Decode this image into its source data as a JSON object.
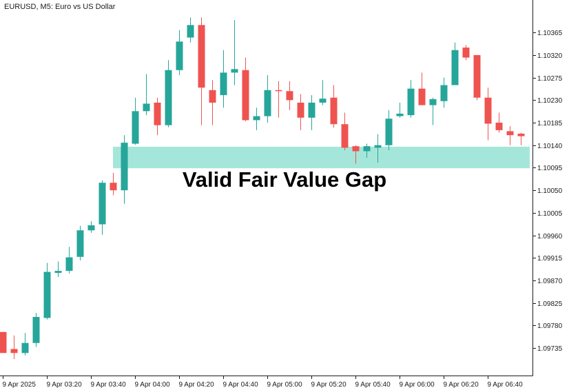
{
  "header": {
    "symbol_label": "EURUSD, M5:  Euro vs US Dollar"
  },
  "chart_data": {
    "type": "candlestick",
    "symbol": "EURUSD",
    "timeframe": "M5",
    "title": "EURUSD, M5:  Euro vs US Dollar",
    "ylim": [
      1.0968,
      1.1043
    ],
    "y_ticks": [
      "1.10365",
      "1.10320",
      "1.10275",
      "1.10230",
      "1.10185",
      "1.10140",
      "1.10095",
      "1.10050",
      "1.10005",
      "1.09960",
      "1.09915",
      "1.09870",
      "1.09825",
      "1.09780",
      "1.09735"
    ],
    "x_ticks": [
      {
        "label": "9 Apr 2025",
        "index": 0
      },
      {
        "label": "9 Apr 03:20",
        "index": 4
      },
      {
        "label": "9 Apr 03:40",
        "index": 8
      },
      {
        "label": "9 Apr 04:00",
        "index": 12
      },
      {
        "label": "9 Apr 04:20",
        "index": 16
      },
      {
        "label": "9 Apr 04:40",
        "index": 20
      },
      {
        "label": "9 Apr 05:00",
        "index": 24
      },
      {
        "label": "9 Apr 05:20",
        "index": 28
      },
      {
        "label": "9 Apr 05:40",
        "index": 32
      },
      {
        "label": "9 Apr 06:00",
        "index": 36
      },
      {
        "label": "9 Apr 06:20",
        "index": 40
      },
      {
        "label": "9 Apr 06:40",
        "index": 44
      }
    ],
    "colors": {
      "bull": "#26a69a",
      "bear": "#ef5350",
      "zone": "#7fdccb",
      "axis": "#1a1a1a"
    },
    "candles": [
      {
        "o": 1.09767,
        "h": 1.09767,
        "l": 1.09725,
        "c": 1.09725
      },
      {
        "o": 1.09733,
        "h": 1.0976,
        "l": 1.09713,
        "c": 1.09725
      },
      {
        "o": 1.09725,
        "h": 1.09765,
        "l": 1.0972,
        "c": 1.09745
      },
      {
        "o": 1.09745,
        "h": 1.09805,
        "l": 1.09737,
        "c": 1.09797
      },
      {
        "o": 1.09795,
        "h": 1.09905,
        "l": 1.09792,
        "c": 1.09887
      },
      {
        "o": 1.09885,
        "h": 1.09908,
        "l": 1.09877,
        "c": 1.09889
      },
      {
        "o": 1.09889,
        "h": 1.09937,
        "l": 1.09884,
        "c": 1.09916
      },
      {
        "o": 1.09917,
        "h": 1.09979,
        "l": 1.0991,
        "c": 1.0997
      },
      {
        "o": 1.0997,
        "h": 1.09988,
        "l": 1.09965,
        "c": 1.0998
      },
      {
        "o": 1.09982,
        "h": 1.1007,
        "l": 1.09961,
        "c": 1.10065
      },
      {
        "o": 1.10065,
        "h": 1.10085,
        "l": 1.1004,
        "c": 1.1005
      },
      {
        "o": 1.1005,
        "h": 1.1016,
        "l": 1.10023,
        "c": 1.10145
      },
      {
        "o": 1.10143,
        "h": 1.10235,
        "l": 1.10141,
        "c": 1.10208
      },
      {
        "o": 1.10208,
        "h": 1.10282,
        "l": 1.102,
        "c": 1.10223
      },
      {
        "o": 1.10225,
        "h": 1.10235,
        "l": 1.1016,
        "c": 1.1018
      },
      {
        "o": 1.1018,
        "h": 1.1031,
        "l": 1.10176,
        "c": 1.1029
      },
      {
        "o": 1.1029,
        "h": 1.1037,
        "l": 1.1028,
        "c": 1.10347
      },
      {
        "o": 1.10355,
        "h": 1.10395,
        "l": 1.10345,
        "c": 1.1038
      },
      {
        "o": 1.1038,
        "h": 1.10395,
        "l": 1.1018,
        "c": 1.10255
      },
      {
        "o": 1.1025,
        "h": 1.1027,
        "l": 1.1018,
        "c": 1.10225
      },
      {
        "o": 1.1024,
        "h": 1.1033,
        "l": 1.10215,
        "c": 1.10285
      },
      {
        "o": 1.10285,
        "h": 1.1039,
        "l": 1.1026,
        "c": 1.10292
      },
      {
        "o": 1.1029,
        "h": 1.10315,
        "l": 1.10188,
        "c": 1.1019
      },
      {
        "o": 1.1019,
        "h": 1.10215,
        "l": 1.1017,
        "c": 1.10198
      },
      {
        "o": 1.10198,
        "h": 1.1028,
        "l": 1.10185,
        "c": 1.1025
      },
      {
        "o": 1.1025,
        "h": 1.10268,
        "l": 1.10195,
        "c": 1.10248
      },
      {
        "o": 1.10248,
        "h": 1.10268,
        "l": 1.1021,
        "c": 1.1023
      },
      {
        "o": 1.10225,
        "h": 1.10242,
        "l": 1.1017,
        "c": 1.10195
      },
      {
        "o": 1.10195,
        "h": 1.1024,
        "l": 1.1017,
        "c": 1.10225
      },
      {
        "o": 1.10225,
        "h": 1.1027,
        "l": 1.1022,
        "c": 1.10233
      },
      {
        "o": 1.10235,
        "h": 1.1026,
        "l": 1.10175,
        "c": 1.10182
      },
      {
        "o": 1.10182,
        "h": 1.10205,
        "l": 1.1013,
        "c": 1.10135
      },
      {
        "o": 1.10138,
        "h": 1.1014,
        "l": 1.10103,
        "c": 1.10128
      },
      {
        "o": 1.10128,
        "h": 1.10143,
        "l": 1.10115,
        "c": 1.10138
      },
      {
        "o": 1.10135,
        "h": 1.10162,
        "l": 1.10105,
        "c": 1.1014
      },
      {
        "o": 1.1014,
        "h": 1.1021,
        "l": 1.1013,
        "c": 1.10193
      },
      {
        "o": 1.10198,
        "h": 1.10225,
        "l": 1.10195,
        "c": 1.10203
      },
      {
        "o": 1.102,
        "h": 1.1027,
        "l": 1.10195,
        "c": 1.10253
      },
      {
        "o": 1.10253,
        "h": 1.10285,
        "l": 1.1022,
        "c": 1.1022
      },
      {
        "o": 1.1022,
        "h": 1.10235,
        "l": 1.1018,
        "c": 1.10232
      },
      {
        "o": 1.10228,
        "h": 1.10275,
        "l": 1.10215,
        "c": 1.1026
      },
      {
        "o": 1.1026,
        "h": 1.10345,
        "l": 1.1026,
        "c": 1.1033
      },
      {
        "o": 1.10335,
        "h": 1.1034,
        "l": 1.1031,
        "c": 1.10315
      },
      {
        "o": 1.1032,
        "h": 1.1032,
        "l": 1.1023,
        "c": 1.10235
      },
      {
        "o": 1.10235,
        "h": 1.10255,
        "l": 1.1015,
        "c": 1.10183
      },
      {
        "o": 1.10185,
        "h": 1.10205,
        "l": 1.10165,
        "c": 1.1017
      },
      {
        "o": 1.10168,
        "h": 1.10178,
        "l": 1.1014,
        "c": 1.1016
      },
      {
        "o": 1.10163,
        "h": 1.10165,
        "l": 1.1014,
        "c": 1.10158
      }
    ],
    "annotation": {
      "text": "Valid Fair Value Gap",
      "zone": [
        1.10094,
        1.10137
      ]
    }
  }
}
